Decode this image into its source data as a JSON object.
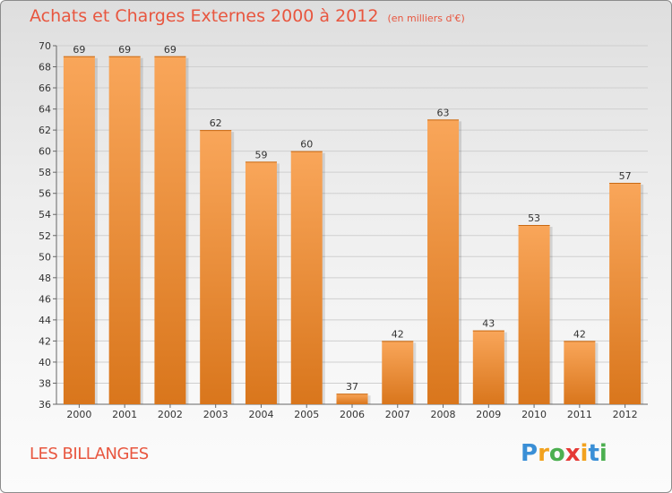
{
  "title": "Achats et Charges Externes 2000 à 2012",
  "subtitle": "(en milliers d'€)",
  "commune": "LES BILLANGES",
  "brand": {
    "letters": [
      "P",
      "r",
      "o",
      "x",
      "i",
      "t",
      "i"
    ],
    "colors": [
      "#3a8fd6",
      "#f2a21e",
      "#4caf50",
      "#e53935",
      "#f2a21e",
      "#3a8fd6",
      "#4caf50"
    ]
  },
  "colors": {
    "accent": "#e8563f",
    "bar_top": "#f9a65a",
    "bar_bottom": "#d9761c"
  },
  "chart_data": {
    "type": "bar",
    "categories": [
      "2000",
      "2001",
      "2002",
      "2003",
      "2004",
      "2005",
      "2006",
      "2007",
      "2008",
      "2009",
      "2010",
      "2011",
      "2012"
    ],
    "values": [
      69,
      69,
      69,
      62,
      59,
      60,
      37,
      42,
      63,
      43,
      53,
      42,
      57
    ],
    "ylim": [
      36,
      70
    ],
    "yticks": [
      36,
      38,
      40,
      42,
      44,
      46,
      48,
      50,
      52,
      54,
      56,
      58,
      60,
      62,
      64,
      66,
      68,
      70
    ],
    "grid": true,
    "data_labels": true
  }
}
